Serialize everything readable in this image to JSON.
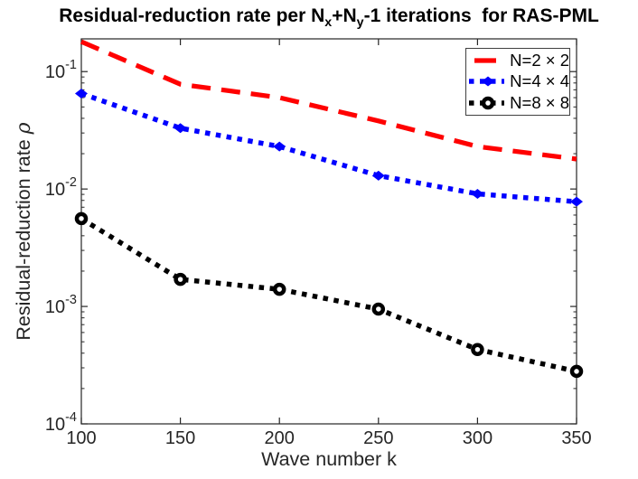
{
  "figure": {
    "title": {
      "part1": "Residual-reduction rate per N",
      "sub1": "x",
      "part2": "+N",
      "sub2": "y",
      "part3": "-1 iterations  for RAS-PML"
    },
    "ylabel_text": "Residual-reduction rate ",
    "ylabel_symbol": "ρ",
    "axis_color": "#262626",
    "background_color": "#ffffff"
  },
  "chart_data": {
    "type": "line",
    "title": "Residual-reduction rate per N_x+N_y-1 iterations  for RAS-PML",
    "xlabel": "Wave number k",
    "ylabel": "Residual-reduction rate ρ",
    "xscale": "linear",
    "yscale": "log",
    "xlim": [
      100,
      350
    ],
    "ylim": [
      0.0001,
      0.19
    ],
    "xticks": [
      100,
      150,
      200,
      250,
      300,
      350
    ],
    "ytick_exponents": [
      -1,
      -2,
      -3,
      -4
    ],
    "grid": false,
    "legend_position": "northeast",
    "x": [
      100,
      150,
      200,
      250,
      300,
      350
    ],
    "series": [
      {
        "name": "N=2 × 2",
        "color": "#ff0000",
        "linestyle": "dashed",
        "marker": "none",
        "values": [
          0.18,
          0.078,
          0.06,
          0.038,
          0.023,
          0.018
        ]
      },
      {
        "name": "N=4 × 4",
        "color": "#0000ff",
        "linestyle": "dotted",
        "marker": "diamond",
        "values": [
          0.065,
          0.033,
          0.023,
          0.013,
          0.0091,
          0.0078
        ]
      },
      {
        "name": "N=8 × 8",
        "color": "#000000",
        "linestyle": "dotted",
        "marker": "circle",
        "values": [
          0.0056,
          0.0017,
          0.0014,
          0.00095,
          0.00043,
          0.00028
        ]
      }
    ]
  }
}
